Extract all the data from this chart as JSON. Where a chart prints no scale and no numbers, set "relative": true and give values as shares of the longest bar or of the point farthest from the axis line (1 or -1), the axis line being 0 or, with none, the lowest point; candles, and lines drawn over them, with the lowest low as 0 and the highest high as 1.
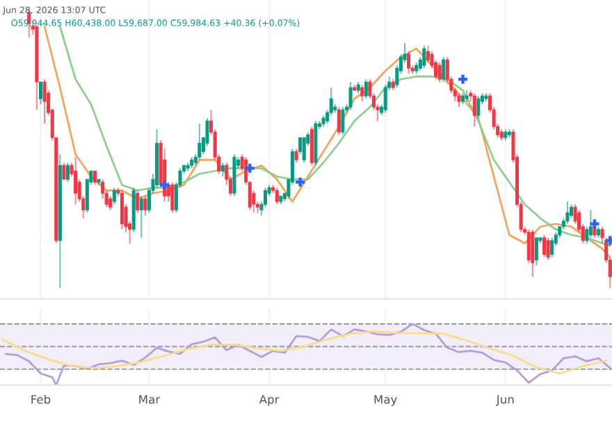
{
  "chart_data": [
    {
      "type": "candlestick",
      "relative": true,
      "grid": "x",
      "tick_labels": false,
      "annotations": [
        "Jun 28, 2026 13:07 UTC",
        "O59,944.65 H60,438.00 L59,687.00 C59,984.63 +40.36 (+0.07%)"
      ],
      "xlim": [
        "2026-01-21T12:00",
        "2026-06-28T12:00"
      ],
      "xticks": [
        {
          "value": "2026-02-01",
          "label": null
        },
        {
          "value": "2026-03-01",
          "label": null
        },
        {
          "value": "2026-04-01",
          "label": null
        },
        {
          "value": "2026-05-01",
          "label": null
        },
        {
          "value": "2026-06-01",
          "label": null
        }
      ],
      "colors": [
        "#f23645",
        "#f23645",
        "#f23645",
        "#089981",
        "#f23645",
        "#f23645",
        "#f23645",
        "#f23645",
        "#089981",
        "#f23645",
        "#089981",
        "#f23645",
        "#f23645",
        "#f23645",
        "#f23645",
        "#089981",
        "#089981",
        "#f23645",
        "#089981",
        "#f23645",
        "#f23645",
        "#f23645",
        "#089981",
        "#f23645",
        "#f23645",
        "#f23645",
        "#f23645",
        "#089981",
        "#f23645",
        "#089981",
        "#f23645",
        "#089981",
        "#089981",
        "#089981",
        "#f23645",
        "#f23645",
        "#f23645",
        "#f23645",
        "#089981",
        "#089981",
        "#089981",
        "#089981",
        "#089981",
        "#089981",
        "#089981",
        "#089981",
        "#089981",
        "#f23645",
        "#f23645",
        "#f23645",
        "#089981",
        "#f23645",
        "#f23645",
        "#089981",
        "#089981",
        "#f23645",
        "#f23645",
        "#f23645",
        "#f23645",
        "#f23645",
        "#089981",
        "#089981",
        "#089981",
        "#f23645",
        "#f23645",
        "#089981",
        "#089981",
        "#089981",
        "#089981",
        "#f23645",
        "#089981",
        "#089981",
        "#089981",
        "#f23645",
        "#089981",
        "#089981",
        "#089981",
        "#089981",
        "#089981",
        "#089981",
        "#f23645",
        "#089981",
        "#089981",
        "#089981",
        "#f23645",
        "#089981",
        "#f23645",
        "#089981",
        "#f23645",
        "#f23645",
        "#f23645",
        "#089981",
        "#089981",
        "#089981",
        "#f23645",
        "#089981",
        "#089981",
        "#089981",
        "#f23645",
        "#f23645",
        "#089981",
        "#089981",
        "#089981",
        "#f23645",
        "#f23645",
        "#f23645",
        "#f23645",
        "#089981",
        "#f23645",
        "#f23645",
        "#f23645",
        "#f23645",
        "#089981",
        "#089981",
        "#f23645",
        "#f23645",
        "#089981",
        "#089981",
        "#089981",
        "#f23645",
        "#f23645",
        "#f23645",
        "#f23645",
        "#089981",
        "#089981",
        "#f23645",
        "#f23645",
        "#f23645",
        "#f23645",
        "#f23645",
        "#f23645",
        "#089981",
        "#089981",
        "#f23645",
        "#f23645",
        "#089981",
        "#089981",
        "#089981",
        "#089981",
        "#089981",
        "#089981",
        "#f23645",
        "#f23645",
        "#f23645",
        "#089981",
        "#089981",
        "#f23645",
        "#089981",
        "#f23645",
        "#f23645",
        "#f23645"
      ],
      "x": [
        "2026-01-29",
        "2026-01-30",
        "2026-01-31",
        "2026-02-01",
        "2026-02-02",
        "2026-02-03",
        "2026-02-04",
        "2026-02-05",
        "2026-02-06",
        "2026-02-07",
        "2026-02-08",
        "2026-02-09",
        "2026-02-10",
        "2026-02-11",
        "2026-02-12",
        "2026-02-13",
        "2026-02-14",
        "2026-02-15",
        "2026-02-16",
        "2026-02-17",
        "2026-02-18",
        "2026-02-19",
        "2026-02-20",
        "2026-02-21",
        "2026-02-22",
        "2026-02-23",
        "2026-02-24",
        "2026-02-25",
        "2026-02-26",
        "2026-02-27",
        "2026-02-28",
        "2026-03-01",
        "2026-03-02",
        "2026-03-03",
        "2026-03-04",
        "2026-03-05",
        "2026-03-06",
        "2026-03-07",
        "2026-03-08",
        "2026-03-09",
        "2026-03-10",
        "2026-03-11",
        "2026-03-12",
        "2026-03-13",
        "2026-03-14",
        "2026-03-15",
        "2026-03-16",
        "2026-03-17",
        "2026-03-18",
        "2026-03-19",
        "2026-03-20",
        "2026-03-21",
        "2026-03-22",
        "2026-03-23",
        "2026-03-24",
        "2026-03-25",
        "2026-03-26",
        "2026-03-27",
        "2026-03-28",
        "2026-03-29",
        "2026-03-30",
        "2026-03-31",
        "2026-04-01",
        "2026-04-02",
        "2026-04-03",
        "2026-04-04",
        "2026-04-05",
        "2026-04-06",
        "2026-04-07",
        "2026-04-08",
        "2026-04-09",
        "2026-04-10",
        "2026-04-11",
        "2026-04-12",
        "2026-04-13",
        "2026-04-14",
        "2026-04-15",
        "2026-04-16",
        "2026-04-17",
        "2026-04-18",
        "2026-04-19",
        "2026-04-20",
        "2026-04-21",
        "2026-04-22",
        "2026-04-23",
        "2026-04-24",
        "2026-04-25",
        "2026-04-26",
        "2026-04-27",
        "2026-04-28",
        "2026-04-29",
        "2026-04-30",
        "2026-05-01",
        "2026-05-02",
        "2026-05-03",
        "2026-05-04",
        "2026-05-05",
        "2026-05-06",
        "2026-05-07",
        "2026-05-08",
        "2026-05-09",
        "2026-05-10",
        "2026-05-11",
        "2026-05-12",
        "2026-05-13",
        "2026-05-14",
        "2026-05-15",
        "2026-05-16",
        "2026-05-17",
        "2026-05-18",
        "2026-05-19",
        "2026-05-20",
        "2026-05-21",
        "2026-05-22",
        "2026-05-23",
        "2026-05-24",
        "2026-05-25",
        "2026-05-26",
        "2026-05-27",
        "2026-05-28",
        "2026-05-29",
        "2026-05-30",
        "2026-05-31",
        "2026-06-01",
        "2026-06-02",
        "2026-06-03",
        "2026-06-04",
        "2026-06-05",
        "2026-06-06",
        "2026-06-07",
        "2026-06-08",
        "2026-06-09",
        "2026-06-10",
        "2026-06-11",
        "2026-06-12",
        "2026-06-13",
        "2026-06-14",
        "2026-06-15",
        "2026-06-16",
        "2026-06-17",
        "2026-06-18",
        "2026-06-19",
        "2026-06-20",
        "2026-06-21",
        "2026-06-22",
        "2026-06-23",
        "2026-06-24",
        "2026-06-25",
        "2026-06-26",
        "2026-06-27",
        "2026-06-28"
      ],
      "ohlc": [
        [
          0.99,
          1,
          0.9,
          0.95
        ],
        [
          0.94,
          0.96,
          0.91,
          0.93
        ],
        [
          0.94,
          0.94,
          0.64,
          0.74
        ],
        [
          0.68,
          0.74,
          0.66,
          0.74
        ],
        [
          0.74,
          0.75,
          0.59,
          0.67
        ],
        [
          0.7,
          0.71,
          0.62,
          0.63
        ],
        [
          0.64,
          0.64,
          0.53,
          0.54
        ],
        [
          0.54,
          0.54,
          0.16,
          0.17
        ],
        [
          0.17,
          0.48,
          0,
          0.44
        ],
        [
          0.44,
          0.45,
          0.39,
          0.39
        ],
        [
          0.39,
          0.45,
          0.38,
          0.44
        ],
        [
          0.44,
          0.45,
          0.4,
          0.41
        ],
        [
          0.42,
          0.47,
          0.3,
          0.34
        ],
        [
          0.38,
          0.39,
          0.31,
          0.32
        ],
        [
          0.32,
          0.33,
          0.25,
          0.28
        ],
        [
          0.28,
          0.39,
          0.27,
          0.39
        ],
        [
          0.38,
          0.42,
          0.37,
          0.42
        ],
        [
          0.42,
          0.42,
          0.37,
          0.38
        ],
        [
          0.38,
          0.39,
          0.37,
          0.39
        ],
        [
          0.38,
          0.39,
          0.32,
          0.34
        ],
        [
          0.34,
          0.35,
          0.29,
          0.3
        ],
        [
          0.32,
          0.33,
          0.28,
          0.29
        ],
        [
          0.31,
          0.36,
          0.3,
          0.35
        ],
        [
          0.35,
          0.36,
          0.33,
          0.34
        ],
        [
          0.34,
          0.35,
          0.21,
          0.23
        ],
        [
          0.29,
          0.3,
          0.2,
          0.22
        ],
        [
          0.23,
          0.24,
          0.16,
          0.21
        ],
        [
          0.21,
          0.36,
          0.2,
          0.35
        ],
        [
          0.34,
          0.35,
          0.27,
          0.28
        ],
        [
          0.28,
          0.33,
          0.18,
          0.32
        ],
        [
          0.32,
          0.33,
          0.26,
          0.28
        ],
        [
          0.28,
          0.36,
          0.27,
          0.35
        ],
        [
          0.35,
          0.41,
          0.34,
          0.39
        ],
        [
          0.37,
          0.57,
          0.36,
          0.52
        ],
        [
          0.52,
          0.53,
          0.36,
          0.37
        ],
        [
          0.46,
          0.5,
          0.31,
          0.33
        ],
        [
          0.37,
          0.38,
          0.31,
          0.33
        ],
        [
          0.37,
          0.38,
          0.27,
          0.28
        ],
        [
          0.28,
          0.38,
          0.27,
          0.37
        ],
        [
          0.37,
          0.43,
          0.36,
          0.42
        ],
        [
          0.42,
          0.44,
          0.41,
          0.44
        ],
        [
          0.43,
          0.45,
          0.42,
          0.44
        ],
        [
          0.44,
          0.47,
          0.43,
          0.46
        ],
        [
          0.45,
          0.48,
          0.44,
          0.47
        ],
        [
          0.47,
          0.59,
          0.46,
          0.52
        ],
        [
          0.49,
          0.54,
          0.48,
          0.54
        ],
        [
          0.52,
          0.61,
          0.51,
          0.6
        ],
        [
          0.6,
          0.64,
          0.55,
          0.56
        ],
        [
          0.56,
          0.57,
          0.46,
          0.47
        ],
        [
          0.47,
          0.48,
          0.41,
          0.42
        ],
        [
          0.42,
          0.45,
          0.4,
          0.44
        ],
        [
          0.44,
          0.45,
          0.37,
          0.39
        ],
        [
          0.39,
          0.4,
          0.33,
          0.34
        ],
        [
          0.34,
          0.48,
          0.33,
          0.47
        ],
        [
          0.44,
          0.47,
          0.43,
          0.46
        ],
        [
          0.47,
          0.48,
          0.42,
          0.43
        ],
        [
          0.46,
          0.47,
          0.37,
          0.38
        ],
        [
          0.38,
          0.38,
          0.28,
          0.29
        ],
        [
          0.34,
          0.35,
          0.27,
          0.3
        ],
        [
          0.3,
          0.31,
          0.27,
          0.29
        ],
        [
          0.28,
          0.31,
          0.26,
          0.3
        ],
        [
          0.3,
          0.36,
          0.29,
          0.35
        ],
        [
          0.34,
          0.37,
          0.33,
          0.36
        ],
        [
          0.36,
          0.37,
          0.34,
          0.35
        ],
        [
          0.35,
          0.36,
          0.3,
          0.31
        ],
        [
          0.31,
          0.33,
          0.3,
          0.33
        ],
        [
          0.32,
          0.34,
          0.31,
          0.34
        ],
        [
          0.33,
          0.39,
          0.32,
          0.39
        ],
        [
          0.38,
          0.5,
          0.37,
          0.49
        ],
        [
          0.49,
          0.5,
          0.45,
          0.46
        ],
        [
          0.49,
          0.54,
          0.48,
          0.54
        ],
        [
          0.46,
          0.54,
          0.45,
          0.54
        ],
        [
          0.52,
          0.56,
          0.51,
          0.55
        ],
        [
          0.57,
          0.58,
          0.44,
          0.45
        ],
        [
          0.45,
          0.6,
          0.44,
          0.59
        ],
        [
          0.58,
          0.6,
          0.57,
          0.59
        ],
        [
          0.59,
          0.62,
          0.58,
          0.61
        ],
        [
          0.6,
          0.64,
          0.59,
          0.63
        ],
        [
          0.63,
          0.72,
          0.62,
          0.68
        ],
        [
          0.64,
          0.66,
          0.63,
          0.65
        ],
        [
          0.64,
          0.65,
          0.55,
          0.56
        ],
        [
          0.56,
          0.65,
          0.55,
          0.64
        ],
        [
          0.64,
          0.66,
          0.63,
          0.65
        ],
        [
          0.65,
          0.74,
          0.64,
          0.72
        ],
        [
          0.72,
          0.73,
          0.71,
          0.71
        ],
        [
          0.71,
          0.74,
          0.7,
          0.73
        ],
        [
          0.72,
          0.73,
          0.67,
          0.69
        ],
        [
          0.69,
          0.75,
          0.68,
          0.74
        ],
        [
          0.74,
          0.75,
          0.68,
          0.69
        ],
        [
          0.69,
          0.7,
          0.64,
          0.65
        ],
        [
          0.65,
          0.66,
          0.6,
          0.64
        ],
        [
          0.63,
          0.66,
          0.62,
          0.65
        ],
        [
          0.64,
          0.73,
          0.63,
          0.72
        ],
        [
          0.72,
          0.76,
          0.71,
          0.74
        ],
        [
          0.74,
          0.75,
          0.71,
          0.72
        ],
        [
          0.73,
          0.8,
          0.72,
          0.79
        ],
        [
          0.78,
          0.84,
          0.77,
          0.83
        ],
        [
          0.82,
          0.88,
          0.81,
          0.84
        ],
        [
          0.84,
          0.85,
          0.77,
          0.79
        ],
        [
          0.79,
          0.8,
          0.77,
          0.78
        ],
        [
          0.78,
          0.81,
          0.77,
          0.8
        ],
        [
          0.79,
          0.83,
          0.78,
          0.82
        ],
        [
          0.8,
          0.87,
          0.79,
          0.86
        ],
        [
          0.85,
          0.87,
          0.81,
          0.82
        ],
        [
          0.84,
          0.85,
          0.79,
          0.8
        ],
        [
          0.81,
          0.82,
          0.75,
          0.76
        ],
        [
          0.8,
          0.81,
          0.74,
          0.75
        ],
        [
          0.75,
          0.83,
          0.74,
          0.82
        ],
        [
          0.82,
          0.83,
          0.74,
          0.75
        ],
        [
          0.75,
          0.76,
          0.7,
          0.71
        ],
        [
          0.71,
          0.72,
          0.67,
          0.69
        ],
        [
          0.69,
          0.7,
          0.65,
          0.67
        ],
        [
          0.67,
          0.7,
          0.66,
          0.69
        ],
        [
          0.68,
          0.71,
          0.67,
          0.69
        ],
        [
          0.7,
          0.71,
          0.67,
          0.69
        ],
        [
          0.69,
          0.7,
          0.58,
          0.62
        ],
        [
          0.62,
          0.69,
          0.61,
          0.68
        ],
        [
          0.67,
          0.7,
          0.66,
          0.69
        ],
        [
          0.68,
          0.7,
          0.67,
          0.69
        ],
        [
          0.69,
          0.7,
          0.63,
          0.64
        ],
        [
          0.64,
          0.65,
          0.57,
          0.58
        ],
        [
          0.58,
          0.59,
          0.54,
          0.55
        ],
        [
          0.56,
          0.57,
          0.53,
          0.54
        ],
        [
          0.54,
          0.57,
          0.53,
          0.56
        ],
        [
          0.55,
          0.57,
          0.54,
          0.56
        ],
        [
          0.56,
          0.57,
          0.45,
          0.46
        ],
        [
          0.47,
          0.48,
          0.29,
          0.3
        ],
        [
          0.3,
          0.31,
          0.2,
          0.21
        ],
        [
          0.21,
          0.22,
          0.19,
          0.2
        ],
        [
          0.2,
          0.21,
          0.09,
          0.1
        ],
        [
          0.2,
          0.21,
          0.04,
          0.09
        ],
        [
          0.1,
          0.18,
          0.08,
          0.18
        ],
        [
          0.17,
          0.18,
          0.16,
          0.18
        ],
        [
          0.18,
          0.19,
          0.11,
          0.12
        ],
        [
          0.17,
          0.18,
          0.1,
          0.11
        ],
        [
          0.12,
          0.18,
          0.11,
          0.17
        ],
        [
          0.16,
          0.2,
          0.15,
          0.19
        ],
        [
          0.19,
          0.22,
          0.18,
          0.22
        ],
        [
          0.22,
          0.25,
          0.21,
          0.24
        ],
        [
          0.24,
          0.31,
          0.23,
          0.27
        ],
        [
          0.26,
          0.3,
          0.25,
          0.29
        ],
        [
          0.29,
          0.3,
          0.23,
          0.24
        ],
        [
          0.27,
          0.28,
          0.2,
          0.21
        ],
        [
          0.22,
          0.23,
          0.16,
          0.17
        ],
        [
          0.17,
          0.22,
          0.16,
          0.21
        ],
        [
          0.19,
          0.28,
          0.18,
          0.22
        ],
        [
          0.22,
          0.23,
          0.18,
          0.19
        ],
        [
          0.19,
          0.22,
          0.18,
          0.21
        ],
        [
          0.21,
          0.22,
          0.16,
          0.18
        ],
        [
          0.17,
          0.18,
          0.09,
          0.1
        ],
        [
          0.1,
          0.11,
          0,
          0.04
        ]
      ],
      "series": [
        {
          "type": "line",
          "color": "#f7a35c",
          "x": [
            "2026-02-02",
            "2026-02-06",
            "2026-02-10",
            "2026-02-14",
            "2026-02-18",
            "2026-02-22",
            "2026-02-26",
            "2026-03-02",
            "2026-03-06",
            "2026-03-10",
            "2026-03-14",
            "2026-03-18",
            "2026-03-22",
            "2026-03-26",
            "2026-03-30",
            "2026-04-03",
            "2026-04-07",
            "2026-04-11",
            "2026-04-15",
            "2026-04-19",
            "2026-04-23",
            "2026-04-27",
            "2026-05-01",
            "2026-05-05",
            "2026-05-09",
            "2026-05-13",
            "2026-05-17",
            "2026-05-21",
            "2026-05-25",
            "2026-05-29",
            "2026-06-02",
            "2026-06-06",
            "2026-06-10",
            "2026-06-14",
            "2026-06-18",
            "2026-06-22",
            "2026-06-26",
            "2026-06-28"
          ],
          "values": [
            0.94,
            0.72,
            0.48,
            0.4,
            0.35,
            0.35,
            0.32,
            0.34,
            0.35,
            0.37,
            0.46,
            0.46,
            0.39,
            0.42,
            0.44,
            0.39,
            0.31,
            0.4,
            0.49,
            0.58,
            0.68,
            0.72,
            0.78,
            0.83,
            0.86,
            0.8,
            0.74,
            0.68,
            0.61,
            0.4,
            0.19,
            0.16,
            0.22,
            0.23,
            0.22,
            0.18,
            0.14,
            0.11
          ]
        },
        {
          "type": "line",
          "color": "#8fce8f",
          "x": [
            "2026-02-06",
            "2026-02-10",
            "2026-02-14",
            "2026-02-18",
            "2026-02-22",
            "2026-02-26",
            "2026-03-02",
            "2026-03-06",
            "2026-03-10",
            "2026-03-14",
            "2026-03-18",
            "2026-03-22",
            "2026-03-26",
            "2026-03-30",
            "2026-04-03",
            "2026-04-07",
            "2026-04-11",
            "2026-04-15",
            "2026-04-19",
            "2026-04-23",
            "2026-04-27",
            "2026-05-01",
            "2026-05-05",
            "2026-05-09",
            "2026-05-13",
            "2026-05-17",
            "2026-05-21",
            "2026-05-25",
            "2026-05-29",
            "2026-06-02",
            "2026-06-06",
            "2026-06-10",
            "2026-06-14",
            "2026-06-18",
            "2026-06-22",
            "2026-06-26",
            "2026-06-28"
          ],
          "values": [
            0.94,
            0.75,
            0.66,
            0.51,
            0.37,
            0.35,
            0.36,
            0.36,
            0.38,
            0.41,
            0.42,
            0.43,
            0.43,
            0.43,
            0.4,
            0.39,
            0.39,
            0.45,
            0.52,
            0.6,
            0.65,
            0.72,
            0.75,
            0.76,
            0.76,
            0.75,
            0.71,
            0.6,
            0.46,
            0.38,
            0.3,
            0.25,
            0.21,
            0.19,
            0.18,
            0.16,
            0.15
          ]
        },
        {
          "type": "scatter",
          "marker": "cross",
          "color": "#2962ff",
          "x": [
            "2026-03-05",
            "2026-03-27",
            "2026-04-09",
            "2026-05-21",
            "2026-06-24",
            "2026-06-28"
          ],
          "values": [
            0.37,
            0.43,
            0.38,
            0.75,
            0.23,
            0.17
          ]
        }
      ]
    },
    {
      "type": "line",
      "relative": true,
      "grid": "x",
      "tick_labels": "x",
      "xlim": [
        "2026-01-21T12:00",
        "2026-06-28T12:00"
      ],
      "xticks": [
        {
          "value": "2026-02-01",
          "label": "Feb"
        },
        {
          "value": "2026-03-01",
          "label": "Mar"
        },
        {
          "value": "2026-04-01",
          "label": "Apr"
        },
        {
          "value": "2026-05-01",
          "label": "May"
        },
        {
          "value": "2026-06-01",
          "label": "Jun"
        }
      ],
      "bands": [
        {
          "axis": "y",
          "from": 0.26,
          "to": 1.0,
          "color": "#7e57c2"
        }
      ],
      "ref_lines": [
        {
          "axis": "y",
          "value": 1.0,
          "color": "#9598a1",
          "line_style": "dashed"
        },
        {
          "axis": "y",
          "value": 0.63,
          "color": "#9598a1",
          "line_style": "dashed"
        },
        {
          "axis": "y",
          "value": 0.26,
          "color": "#9598a1",
          "line_style": "dashed"
        }
      ],
      "series": [
        {
          "type": "line",
          "color": "#b39ddb",
          "x": [
            "2026-01-23",
            "2026-01-26",
            "2026-01-29",
            "2026-02-01",
            "2026-02-04",
            "2026-02-05",
            "2026-02-07",
            "2026-02-10",
            "2026-02-13",
            "2026-02-16",
            "2026-02-19",
            "2026-02-22",
            "2026-02-25",
            "2026-02-28",
            "2026-03-03",
            "2026-03-06",
            "2026-03-09",
            "2026-03-12",
            "2026-03-15",
            "2026-03-18",
            "2026-03-21",
            "2026-03-24",
            "2026-03-27",
            "2026-03-30",
            "2026-04-02",
            "2026-04-05",
            "2026-04-08",
            "2026-04-11",
            "2026-04-14",
            "2026-04-17",
            "2026-04-20",
            "2026-04-23",
            "2026-04-26",
            "2026-04-29",
            "2026-05-02",
            "2026-05-05",
            "2026-05-08",
            "2026-05-11",
            "2026-05-14",
            "2026-05-17",
            "2026-05-20",
            "2026-05-23",
            "2026-05-26",
            "2026-05-29",
            "2026-06-01",
            "2026-06-04",
            "2026-06-07",
            "2026-06-10",
            "2026-06-13",
            "2026-06-16",
            "2026-06-19",
            "2026-06-22",
            "2026-06-25",
            "2026-06-28"
          ],
          "values": [
            0.51,
            0.49,
            0.39,
            0.19,
            0.13,
            0,
            0.32,
            0.31,
            0.27,
            0.34,
            0.36,
            0.4,
            0.33,
            0.45,
            0.61,
            0.55,
            0.51,
            0.67,
            0.71,
            0.78,
            0.57,
            0.66,
            0.56,
            0.46,
            0.56,
            0.53,
            0.8,
            0.79,
            0.72,
            0.91,
            0.8,
            0.91,
            0.88,
            0.83,
            0.82,
            0.87,
            1.0,
            0.9,
            0.84,
            0.61,
            0.54,
            0.56,
            0.53,
            0.41,
            0.37,
            0.24,
            0.04,
            0.18,
            0.24,
            0.44,
            0.47,
            0.39,
            0.44,
            0.28
          ]
        },
        {
          "type": "line",
          "color": "#f9dc8a",
          "x": [
            "2026-01-22",
            "2026-01-28",
            "2026-02-03",
            "2026-02-09",
            "2026-02-15",
            "2026-02-21",
            "2026-02-27",
            "2026-03-05",
            "2026-03-11",
            "2026-03-17",
            "2026-03-23",
            "2026-03-29",
            "2026-04-04",
            "2026-04-10",
            "2026-04-16",
            "2026-04-22",
            "2026-04-28",
            "2026-05-04",
            "2026-05-10",
            "2026-05-16",
            "2026-05-22",
            "2026-05-28",
            "2026-06-03",
            "2026-06-09",
            "2026-06-15",
            "2026-06-21",
            "2026-06-27"
          ],
          "values": [
            0.75,
            0.56,
            0.42,
            0.31,
            0.28,
            0.31,
            0.38,
            0.48,
            0.59,
            0.66,
            0.66,
            0.6,
            0.56,
            0.63,
            0.75,
            0.84,
            0.88,
            0.85,
            0.85,
            0.84,
            0.73,
            0.6,
            0.48,
            0.29,
            0.19,
            0.31,
            0.4
          ]
        }
      ]
    }
  ]
}
